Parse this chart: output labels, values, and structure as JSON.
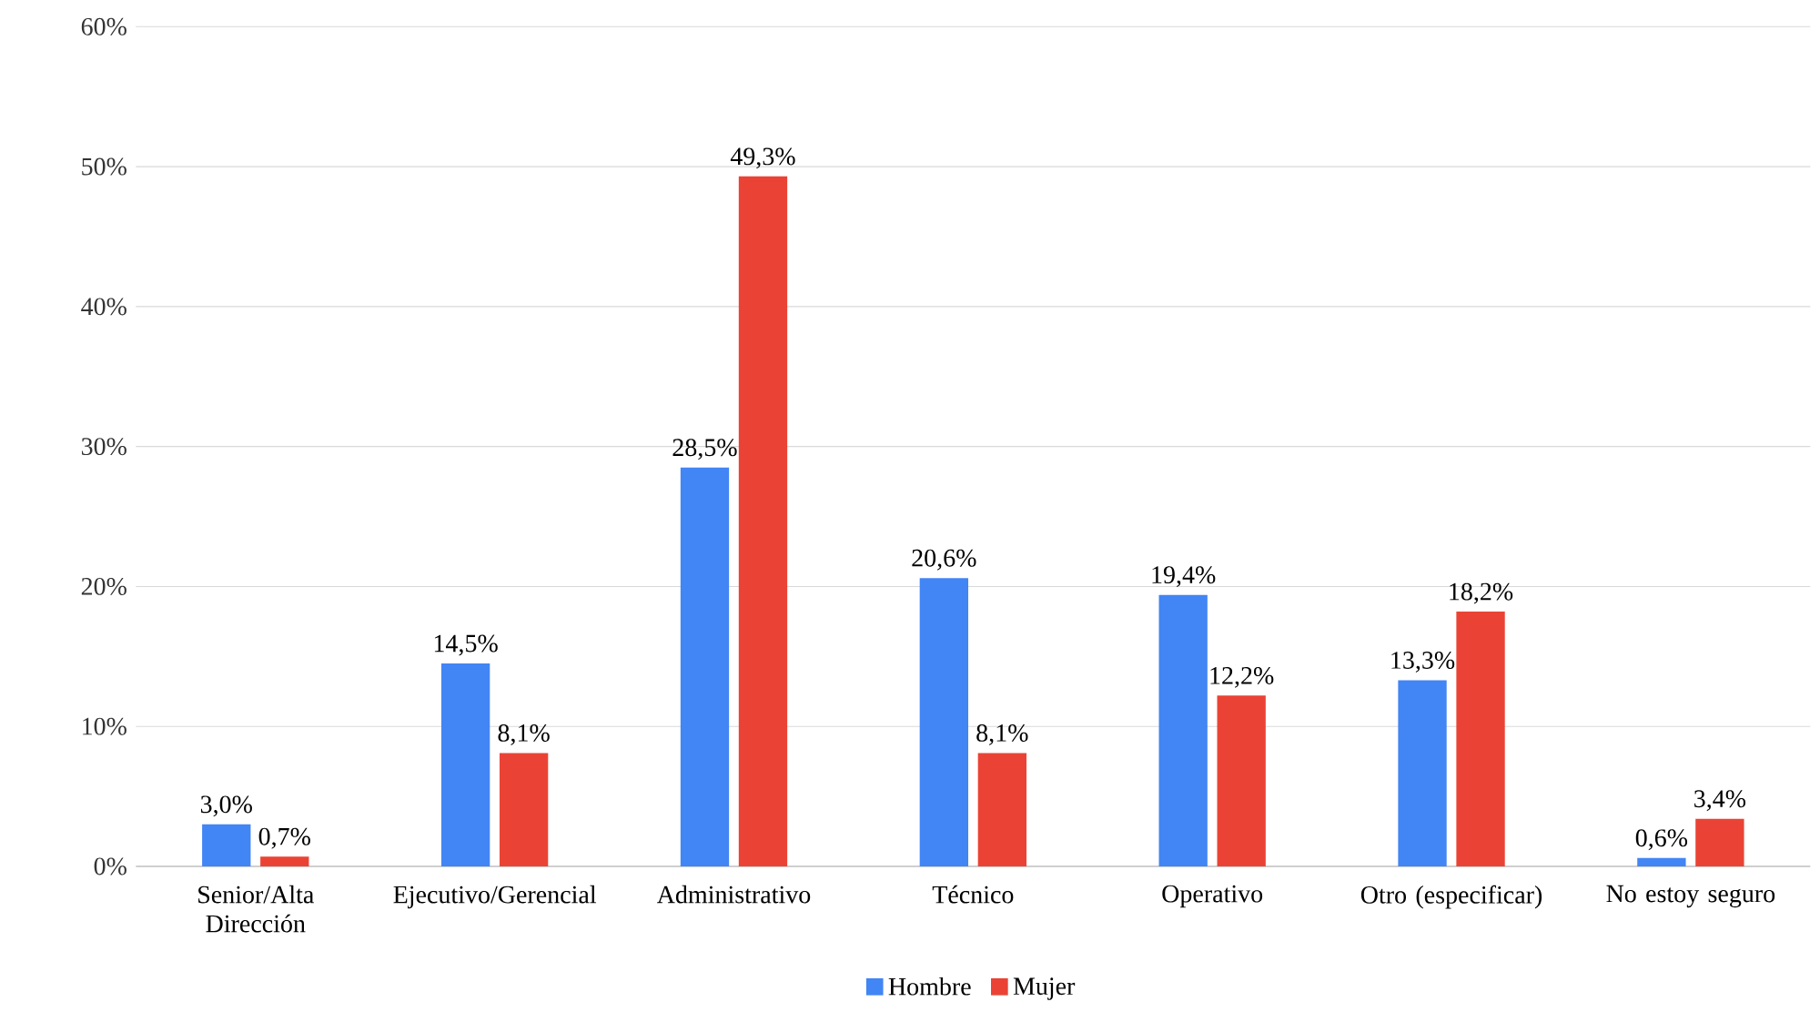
{
  "chart_data": {
    "type": "bar",
    "categories": [
      "Senior/Alta Dirección",
      "Ejecutivo/Gerencial",
      "Administrativo",
      "Técnico",
      "Operativo",
      "Otro (especificar)",
      "No estoy seguro"
    ],
    "series": [
      {
        "name": "Hombre",
        "color": "#4285f4",
        "values": [
          3.0,
          14.5,
          28.5,
          20.6,
          19.4,
          13.3,
          0.6
        ],
        "value_labels": [
          "3,0%",
          "14,5%",
          "28,5%",
          "20,6%",
          "19,4%",
          "13,3%",
          "0,6%"
        ]
      },
      {
        "name": "Mujer",
        "color": "#ea4335",
        "values": [
          0.7,
          8.1,
          49.3,
          8.1,
          12.2,
          18.2,
          3.4
        ],
        "value_labels": [
          "0,7%",
          "8,1%",
          "49,3%",
          "8,1%",
          "12,2%",
          "18,2%",
          "3,4%"
        ]
      }
    ],
    "ylim": [
      0,
      60
    ],
    "yticks": [
      {
        "value": 0,
        "label": "0%"
      },
      {
        "value": 10,
        "label": "10%"
      },
      {
        "value": 20,
        "label": "20%"
      },
      {
        "value": 30,
        "label": "30%"
      },
      {
        "value": 40,
        "label": "40%"
      },
      {
        "value": 50,
        "label": "50%"
      },
      {
        "value": 60,
        "label": "60%"
      }
    ],
    "grid": "y",
    "legend": "bottom"
  }
}
